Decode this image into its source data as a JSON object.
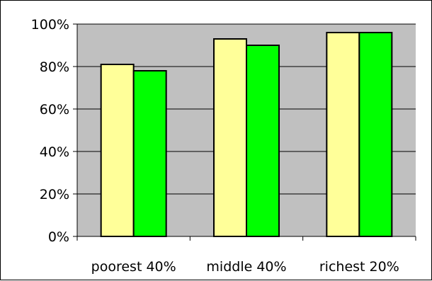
{
  "chart_data": {
    "type": "bar",
    "title": "",
    "xlabel": "",
    "ylabel": "",
    "categories": [
      "poorest 40%",
      "middle 40%",
      "richest 20%"
    ],
    "series": [
      {
        "values": [
          81,
          93,
          96
        ],
        "color": "#ffff99"
      },
      {
        "values": [
          78,
          90,
          96
        ],
        "color": "#00ff00"
      }
    ],
    "ylim": [
      0,
      100
    ],
    "yticks": [
      0,
      20,
      40,
      60,
      80,
      100
    ],
    "ytick_labels": [
      "0%",
      "20%",
      "40%",
      "60%",
      "80%",
      "100%"
    ],
    "grid": true,
    "plot_background": "#c0c0c0",
    "legend": "none"
  }
}
